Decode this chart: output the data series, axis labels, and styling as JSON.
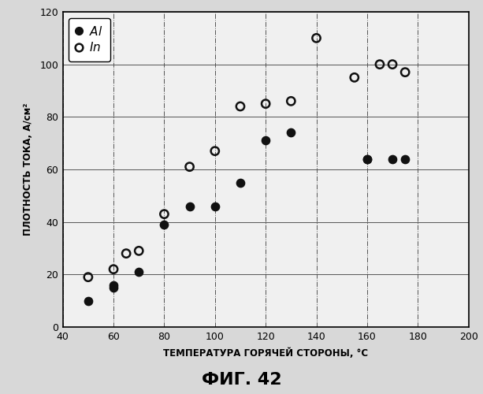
{
  "Al_x": [
    50,
    60,
    60,
    70,
    80,
    90,
    100,
    110,
    120,
    130,
    160,
    160,
    170,
    175
  ],
  "Al_y": [
    10,
    15,
    16,
    21,
    39,
    46,
    46,
    55,
    71,
    74,
    64,
    64,
    64,
    64
  ],
  "In_x": [
    50,
    60,
    65,
    70,
    80,
    90,
    100,
    110,
    120,
    130,
    140,
    155,
    165,
    170,
    175
  ],
  "In_y": [
    19,
    22,
    28,
    29,
    43,
    61,
    67,
    84,
    85,
    86,
    110,
    95,
    100,
    100,
    97
  ],
  "xlabel": "ТЕМПЕРАТУРА ГОРЯЧЕЙ СТОРОНЫ, °C",
  "ylabel": "ПЛОТНОСТЬ ТОКА, А/см²",
  "title": "ФИГ. 42",
  "xlim": [
    40,
    200
  ],
  "ylim": [
    0,
    120
  ],
  "xticks": [
    40,
    60,
    80,
    100,
    120,
    140,
    160,
    180,
    200
  ],
  "yticks": [
    0,
    20,
    40,
    60,
    80,
    100,
    120
  ],
  "bg_color": "#f0f0f0",
  "marker_color": "#111111",
  "grid_color": "#555555"
}
